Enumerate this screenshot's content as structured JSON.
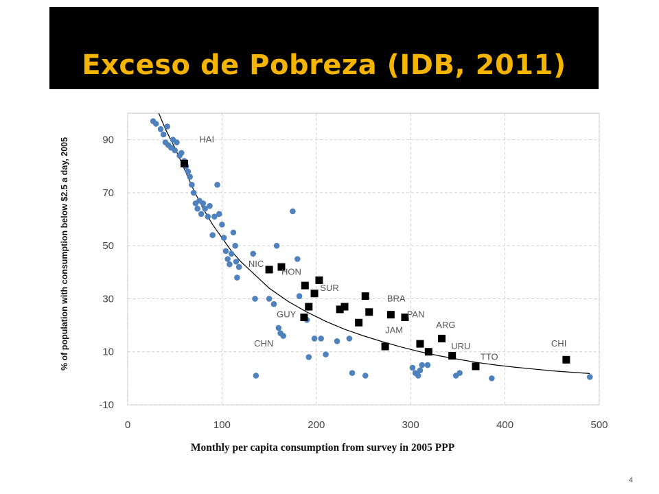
{
  "slide": {
    "title": "Exceso de Pobreza (IDB, 2011)",
    "number": "4"
  },
  "colors": {
    "title_bar": "#000000",
    "title_text": "#f5b400",
    "dots": "#4f81bd",
    "squares": "#000000",
    "curve": "#000000",
    "grid": "#d0d0d0"
  },
  "chart_data": {
    "type": "scatter",
    "xlabel": "Monthly per capita consumption from survey in 2005 PPP",
    "ylabel": "% of population with consumption below $2.5 a day, 2005",
    "xlim": [
      0,
      500
    ],
    "ylim": [
      -10,
      100
    ],
    "x_ticks": [
      "0",
      "100",
      "200",
      "300",
      "400",
      "500"
    ],
    "y_ticks": [
      "-10",
      "10",
      "30",
      "50",
      "70",
      "90"
    ],
    "x_tick_values": [
      0,
      100,
      200,
      300,
      400,
      500
    ],
    "y_tick_values": [
      -10,
      10,
      30,
      50,
      70,
      90
    ],
    "grid": true,
    "curve": [
      [
        33,
        100
      ],
      [
        40,
        94
      ],
      [
        50,
        87
      ],
      [
        60,
        79
      ],
      [
        70,
        71
      ],
      [
        80,
        64
      ],
      [
        90,
        58
      ],
      [
        100,
        53
      ],
      [
        110,
        48
      ],
      [
        120,
        44
      ],
      [
        135,
        39
      ],
      [
        150,
        34
      ],
      [
        170,
        29
      ],
      [
        190,
        25
      ],
      [
        210,
        21.5
      ],
      [
        230,
        18.5
      ],
      [
        250,
        16
      ],
      [
        270,
        13.8
      ],
      [
        290,
        11.8
      ],
      [
        310,
        10
      ],
      [
        330,
        8.5
      ],
      [
        350,
        7.2
      ],
      [
        370,
        6
      ],
      [
        390,
        5
      ],
      [
        410,
        4.2
      ],
      [
        430,
        3.5
      ],
      [
        450,
        2.8
      ],
      [
        470,
        2.3
      ],
      [
        490,
        1.8
      ]
    ],
    "series": [
      {
        "marker": "circle",
        "points": [
          [
            27,
            97
          ],
          [
            30,
            96
          ],
          [
            35,
            94
          ],
          [
            38,
            92
          ],
          [
            42,
            95
          ],
          [
            40,
            89
          ],
          [
            43,
            88
          ],
          [
            46,
            87
          ],
          [
            48,
            90
          ],
          [
            50,
            86
          ],
          [
            52,
            89
          ],
          [
            55,
            84
          ],
          [
            57,
            85
          ],
          [
            60,
            82
          ],
          [
            62,
            80
          ],
          [
            64,
            78
          ],
          [
            66,
            76
          ],
          [
            68,
            73
          ],
          [
            70,
            70
          ],
          [
            72,
            66
          ],
          [
            74,
            64
          ],
          [
            76,
            67
          ],
          [
            78,
            62
          ],
          [
            80,
            66
          ],
          [
            82,
            64
          ],
          [
            85,
            61
          ],
          [
            87,
            65
          ],
          [
            90,
            54
          ],
          [
            92,
            61
          ],
          [
            95,
            73
          ],
          [
            97,
            62
          ],
          [
            100,
            58
          ],
          [
            102,
            53
          ],
          [
            104,
            48
          ],
          [
            106,
            45
          ],
          [
            108,
            43
          ],
          [
            110,
            47
          ],
          [
            112,
            55
          ],
          [
            114,
            50
          ],
          [
            115,
            44
          ],
          [
            116,
            38
          ],
          [
            118,
            42
          ],
          [
            133,
            47
          ],
          [
            135,
            30
          ],
          [
            136,
            1
          ],
          [
            150,
            30
          ],
          [
            155,
            28
          ],
          [
            158,
            50
          ],
          [
            160,
            19
          ],
          [
            162,
            17
          ],
          [
            165,
            16
          ],
          [
            175,
            63
          ],
          [
            180,
            45
          ],
          [
            182,
            31
          ],
          [
            190,
            22
          ],
          [
            192,
            8
          ],
          [
            198,
            15
          ],
          [
            205,
            15
          ],
          [
            210,
            9
          ],
          [
            222,
            14
          ],
          [
            235,
            15
          ],
          [
            238,
            2
          ],
          [
            252,
            1
          ],
          [
            302,
            4
          ],
          [
            305,
            2
          ],
          [
            308,
            1
          ],
          [
            310,
            3
          ],
          [
            312,
            5
          ],
          [
            318,
            5
          ],
          [
            348,
            1
          ],
          [
            352,
            2
          ],
          [
            386,
            0
          ],
          [
            490,
            0.5
          ]
        ]
      },
      {
        "marker": "square",
        "points": [
          [
            60,
            81
          ],
          [
            150,
            41
          ],
          [
            163,
            42
          ],
          [
            187,
            23
          ],
          [
            188,
            35
          ],
          [
            192,
            27
          ],
          [
            198,
            32
          ],
          [
            203,
            37
          ],
          [
            225,
            26
          ],
          [
            230,
            27
          ],
          [
            245,
            21
          ],
          [
            252,
            31
          ],
          [
            256,
            25
          ],
          [
            273,
            12
          ],
          [
            279,
            24
          ],
          [
            294,
            23
          ],
          [
            310,
            13
          ],
          [
            319,
            10
          ],
          [
            333,
            15
          ],
          [
            344,
            8.5
          ],
          [
            369,
            4.5
          ],
          [
            465,
            7
          ]
        ]
      }
    ],
    "labels": [
      {
        "text": "HAI",
        "x": 76,
        "y": 89
      },
      {
        "text": "NIC",
        "x": 128,
        "y": 42
      },
      {
        "text": "HON",
        "x": 163,
        "y": 39
      },
      {
        "text": "SUR",
        "x": 204,
        "y": 33
      },
      {
        "text": "GUY",
        "x": 158,
        "y": 23
      },
      {
        "text": "CHN",
        "x": 134,
        "y": 12
      },
      {
        "text": "BRA",
        "x": 275,
        "y": 29
      },
      {
        "text": "PAN",
        "x": 296,
        "y": 23
      },
      {
        "text": "JAM",
        "x": 273,
        "y": 17
      },
      {
        "text": "ARG",
        "x": 327,
        "y": 19
      },
      {
        "text": "URU",
        "x": 343,
        "y": 11
      },
      {
        "text": "TTO",
        "x": 374,
        "y": 7
      },
      {
        "text": "CHI",
        "x": 449,
        "y": 12
      }
    ]
  }
}
